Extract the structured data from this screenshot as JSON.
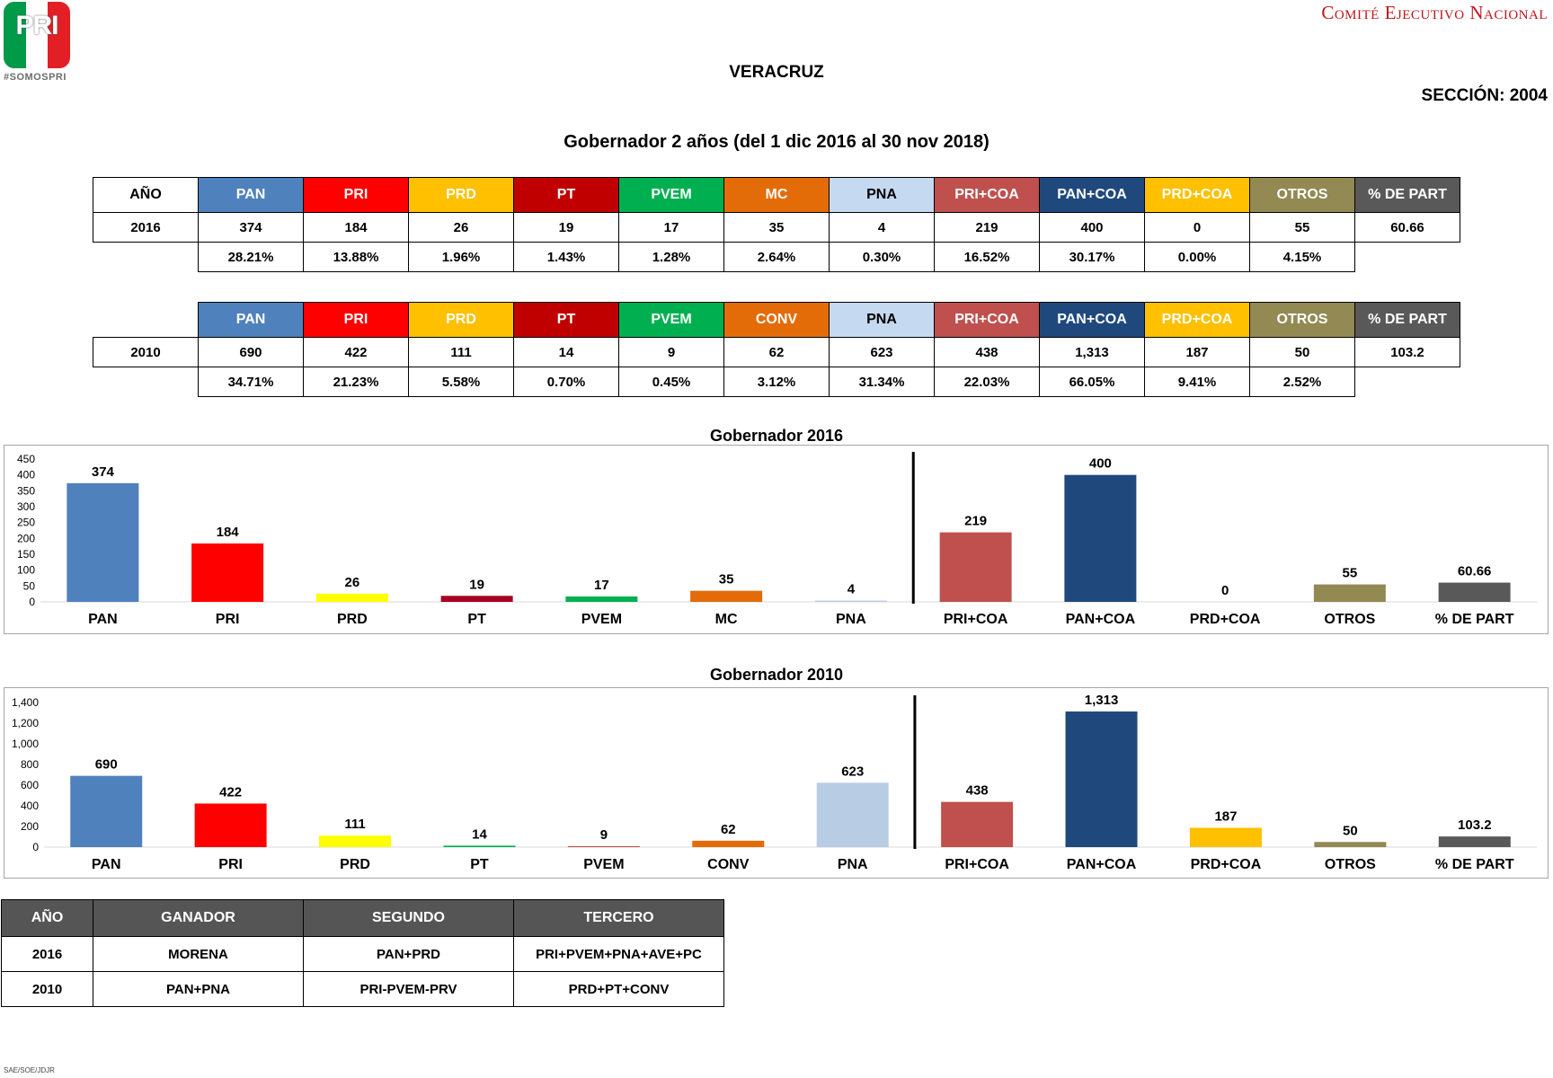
{
  "header": {
    "logo_text": "PRI",
    "logo_tag": "#SOMOSPRI",
    "org": "Comité Ejecutivo Nacional",
    "state": "VERACRUZ",
    "section": "SECCIÓN: 2004",
    "subtitle": "Gobernador 2 años (del 1 dic 2016 al 30 nov 2018)"
  },
  "colors": {
    "PAN": "#4f81bd",
    "PRI": "#ff0000",
    "PRD": "#ffc000",
    "PT": "#c00000",
    "PVEM": "#00b050",
    "MC": "#e36c09",
    "CONV": "#e36c09",
    "PNA": "#c5d9f1",
    "PRI+COA": "#c0504d",
    "PAN+COA": "#1f497d",
    "PRD+COA": "#ffc000",
    "OTROS": "#938953",
    "% DE PART": "#595959",
    "chart_PRD": "#ffff00",
    "chart_PT": "#a50021",
    "chart_PNA": "#b8cce4",
    "header_dark": "#555555"
  },
  "table2016": {
    "year_header": "AÑO",
    "headers": [
      "PAN",
      "PRI",
      "PRD",
      "PT",
      "PVEM",
      "MC",
      "PNA",
      "PRI+COA",
      "PAN+COA",
      "PRD+COA",
      "OTROS",
      "% DE PART"
    ],
    "year": "2016",
    "votes": [
      "374",
      "184",
      "26",
      "19",
      "17",
      "35",
      "4",
      "219",
      "400",
      "0",
      "55",
      "60.66"
    ],
    "pcts": [
      "28.21%",
      "13.88%",
      "1.96%",
      "1.43%",
      "1.28%",
      "2.64%",
      "0.30%",
      "16.52%",
      "30.17%",
      "0.00%",
      "4.15%"
    ]
  },
  "table2010": {
    "headers": [
      "PAN",
      "PRI",
      "PRD",
      "PT",
      "PVEM",
      "CONV",
      "PNA",
      "PRI+COA",
      "PAN+COA",
      "PRD+COA",
      "OTROS",
      "% DE PART"
    ],
    "year": "2010",
    "votes": [
      "690",
      "422",
      "111",
      "14",
      "9",
      "62",
      "623",
      "438",
      "1,313",
      "187",
      "50",
      "103.2"
    ],
    "pcts": [
      "34.71%",
      "21.23%",
      "5.58%",
      "0.70%",
      "0.45%",
      "3.12%",
      "31.34%",
      "22.03%",
      "66.05%",
      "9.41%",
      "2.52%"
    ]
  },
  "chart_data": [
    {
      "type": "bar",
      "title": "Gobernador  2016",
      "categories": [
        "PAN",
        "PRI",
        "PRD",
        "PT",
        "PVEM",
        "MC",
        "PNA",
        "PRI+COA",
        "PAN+COA",
        "PRD+COA",
        "OTROS",
        "% DE PART"
      ],
      "values": [
        374,
        184,
        26,
        19,
        17,
        35,
        4,
        219,
        400,
        0,
        55,
        60.66
      ],
      "labels": [
        "374",
        "184",
        "26",
        "19",
        "17",
        "35",
        "4",
        "219",
        "400",
        "0",
        "55",
        "60.66"
      ],
      "ylim": [
        0,
        450
      ],
      "yticks": [
        "0",
        "50",
        "100",
        "150",
        "200",
        "250",
        "300",
        "350",
        "400",
        "450"
      ],
      "colors": [
        "#4f81bd",
        "#ff0000",
        "#ffff00",
        "#a50021",
        "#00b050",
        "#e36c09",
        "#b8cce4",
        "#c0504d",
        "#1f497d",
        "#ffc000",
        "#938953",
        "#595959"
      ],
      "divider_after": 7,
      "grid": false
    },
    {
      "type": "bar",
      "title": "Gobernador  2010",
      "categories": [
        "PAN",
        "PRI",
        "PRD",
        "PT",
        "PVEM",
        "CONV",
        "PNA",
        "PRI+COA",
        "PAN+COA",
        "PRD+COA",
        "OTROS",
        "% DE PART"
      ],
      "values": [
        690,
        422,
        111,
        14,
        9,
        62,
        623,
        438,
        1313,
        187,
        50,
        103.2
      ],
      "labels": [
        "690",
        "422",
        "111",
        "14",
        "9",
        "62",
        "623",
        "438",
        "1,313",
        "187",
        "50",
        "103.2"
      ],
      "ylim": [
        0,
        1400
      ],
      "yticks": [
        "0",
        "200",
        "400",
        "600",
        "800",
        "1,000",
        "1,200",
        "1,400"
      ],
      "colors": [
        "#4f81bd",
        "#ff0000",
        "#ffff00",
        "#00b050",
        "#c0504d",
        "#e36c09",
        "#b8cce4",
        "#c0504d",
        "#1f497d",
        "#ffc000",
        "#938953",
        "#595959"
      ],
      "divider_after": 7,
      "grid": false
    }
  ],
  "winners": {
    "headers": [
      "AÑO",
      "GANADOR",
      "SEGUNDO",
      "TERCERO"
    ],
    "rows": [
      [
        "2016",
        "MORENA",
        "PAN+PRD",
        "PRI+PVEM+PNA+AVE+PC"
      ],
      [
        "2010",
        "PAN+PNA",
        "PRI-PVEM-PRV",
        "PRD+PT+CONV"
      ]
    ]
  },
  "footer": "SAE/SOE/JDJR"
}
